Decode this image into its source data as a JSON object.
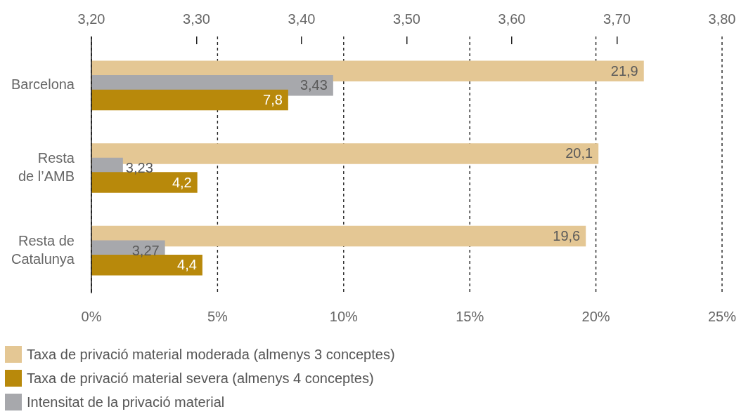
{
  "chart_data": {
    "type": "bar",
    "orientation": "horizontal",
    "categories": [
      "Barcelona",
      "Resta de l’AMB",
      "Resta de Catalunya"
    ],
    "series": [
      {
        "name": "Taxa de privació material moderada (almenys 3 conceptes)",
        "color": "#e4c794",
        "values": [
          21.9,
          20.1,
          19.6
        ],
        "value_labels": [
          "21,9",
          "20,1",
          "19,6"
        ]
      },
      {
        "name": "Intensitat de la privació material",
        "color": "#a7a8ac",
        "axis": "x2",
        "values": [
          3.43,
          3.23,
          3.27
        ],
        "value_labels": [
          "3,43",
          "3,23",
          "3,27"
        ]
      },
      {
        "name": "Taxa de privació material severa (almenys 4 conceptes)",
        "color": "#b8890b",
        "values": [
          7.8,
          4.2,
          4.4
        ],
        "value_labels": [
          "7,8",
          "4,2",
          "4,4"
        ]
      }
    ],
    "xlim": [
      0,
      25
    ],
    "xticks": [
      {
        "value": 0,
        "label": "0%"
      },
      {
        "value": 5,
        "label": "5%"
      },
      {
        "value": 10,
        "label": "10%"
      },
      {
        "value": 15,
        "label": "15%"
      },
      {
        "value": 20,
        "label": "20%"
      },
      {
        "value": 25,
        "label": "25%"
      }
    ],
    "x2lim": [
      3.2,
      3.8
    ],
    "x2ticks": [
      {
        "value": 3.2,
        "label": "3,20"
      },
      {
        "value": 3.3,
        "label": "3,30"
      },
      {
        "value": 3.4,
        "label": "3,40"
      },
      {
        "value": 3.5,
        "label": "3,50"
      },
      {
        "value": 3.6,
        "label": "3,60"
      },
      {
        "value": 3.7,
        "label": "3,70"
      },
      {
        "value": 3.8,
        "label": "3,80"
      }
    ],
    "grid": "x",
    "legend": "bottom"
  }
}
